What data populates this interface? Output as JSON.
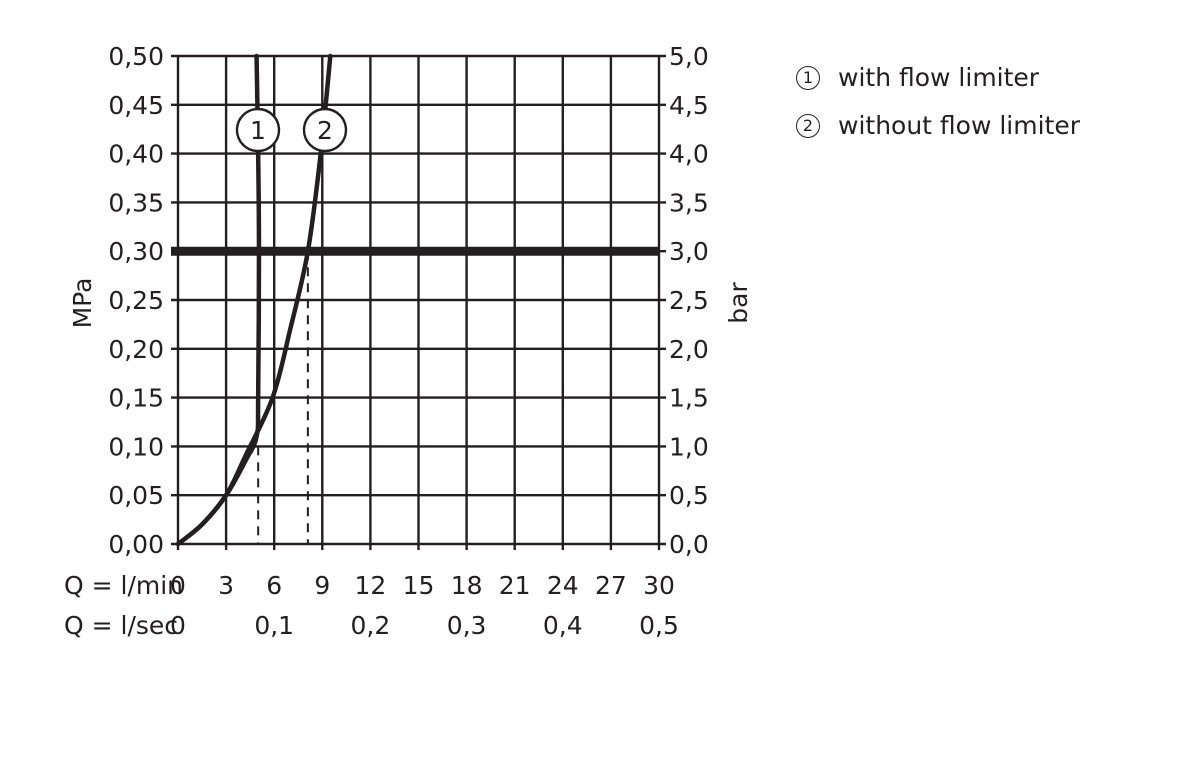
{
  "chart_data": {
    "type": "line",
    "title": "",
    "xlabel_primary": "Q = l/min",
    "xlabel_secondary": "Q = l/sec",
    "ylabel_left": "MPa",
    "ylabel_right": "bar",
    "x_ticks_lmin": [
      "0",
      "3",
      "6",
      "9",
      "12",
      "15",
      "18",
      "21",
      "24",
      "27",
      "30"
    ],
    "x_ticks_lsec": [
      "0",
      "0,1",
      "0,2",
      "0,3",
      "0,4",
      "0,5"
    ],
    "y_ticks_left": [
      "0,00",
      "0,05",
      "0,10",
      "0,15",
      "0,20",
      "0,25",
      "0,30",
      "0,35",
      "0,40",
      "0,45",
      "0,50"
    ],
    "y_ticks_right": [
      "0,0",
      "0,5",
      "1,0",
      "1,5",
      "2,0",
      "2,5",
      "3,0",
      "3,5",
      "4,0",
      "4,5",
      "5,0"
    ],
    "xlim": [
      0,
      30
    ],
    "ylim": [
      0,
      0.5
    ],
    "grid": true,
    "reference_line": {
      "y": 0.3,
      "label": "3,0 bar",
      "style": "thick"
    },
    "series": [
      {
        "name": "with flow limiter",
        "marker_label": "1",
        "x": [
          0,
          1.5,
          3,
          4.2,
          4.9,
          5.0,
          5.05,
          5.0,
          4.9
        ],
        "y": [
          0,
          0.02,
          0.05,
          0.085,
          0.11,
          0.15,
          0.3,
          0.4,
          0.5
        ]
      },
      {
        "name": "without flow limiter",
        "marker_label": "2",
        "x": [
          0,
          1.5,
          3,
          4.2,
          5.9,
          7.0,
          8.1,
          8.9,
          9.5
        ],
        "y": [
          0,
          0.02,
          0.05,
          0.09,
          0.15,
          0.22,
          0.3,
          0.4,
          0.5
        ]
      }
    ],
    "dashed_markers": [
      {
        "x": 5.0,
        "y_to": 0.1,
        "series": "with flow limiter"
      },
      {
        "x": 8.1,
        "y_to": 0.3,
        "series": "without flow limiter"
      }
    ]
  },
  "legend": {
    "items": [
      {
        "num": "1",
        "label": "with flow limiter"
      },
      {
        "num": "2",
        "label": "without flow limiter"
      }
    ]
  }
}
